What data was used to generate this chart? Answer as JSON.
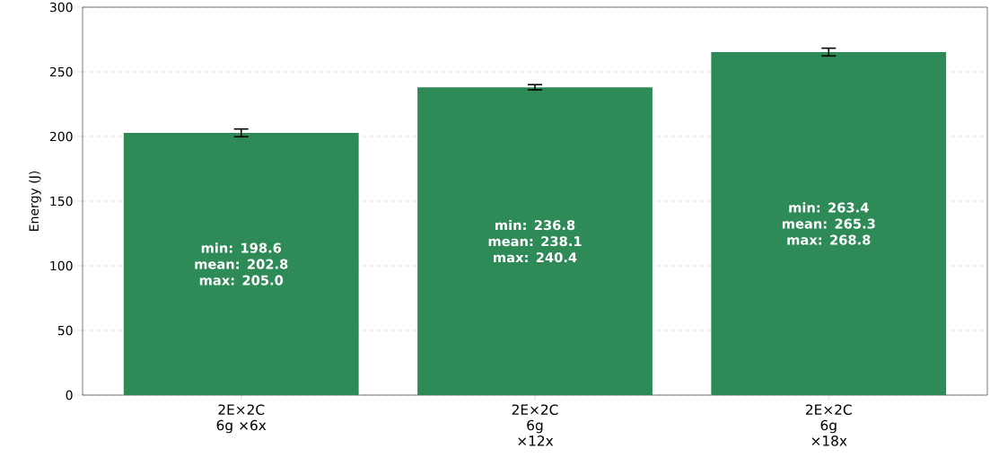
{
  "chart_data": {
    "type": "bar",
    "ylabel": "Energy (J)",
    "categories": [
      "2E×2C 6g ×6x",
      "2E×2C 6g ×12x",
      "2E×2C 6g ×18x"
    ],
    "values": [
      202.8,
      238.1,
      265.3
    ],
    "errors": [
      3,
      2,
      3
    ],
    "value_labels": [
      "min: 198.6 mean: 202.8 max: 205.0",
      "min: 236.8 mean: 238.1 max: 240.4",
      "min: 263.4 mean: 265.3 max: 268.8"
    ],
    "color": "#2e8b57",
    "ylim": [
      0,
      300
    ],
    "yticks": [
      0,
      50,
      100,
      150,
      200,
      250,
      300
    ],
    "grid": "y"
  }
}
